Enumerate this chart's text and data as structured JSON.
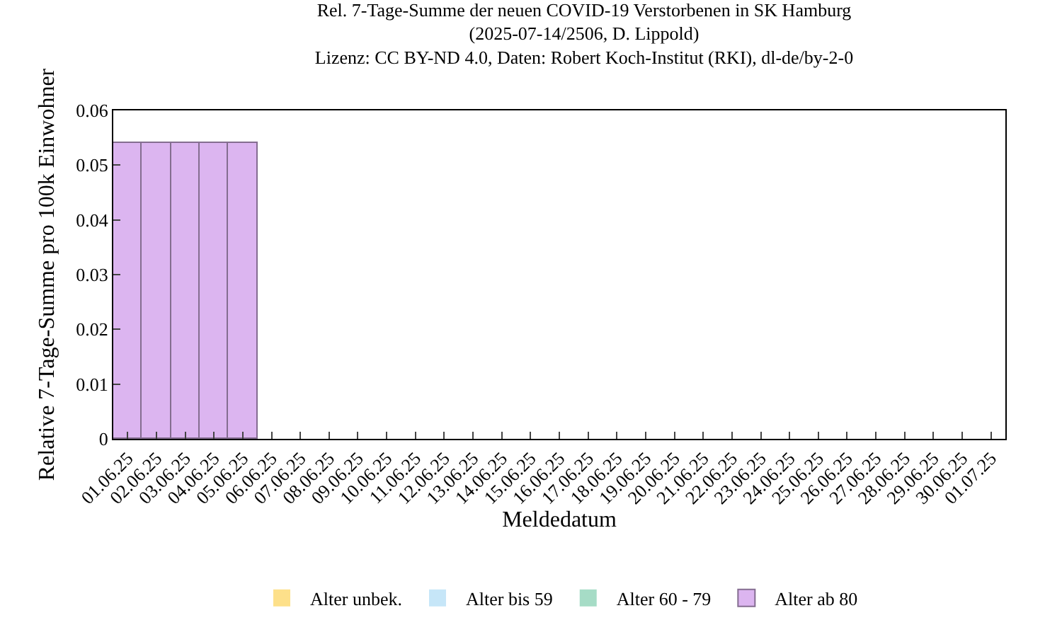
{
  "chart_data": {
    "type": "bar",
    "stacked": true,
    "title": "Rel. 7-Tage-Summe der neuen COVID-19 Verstorbenen in SK Hamburg",
    "subtitle": "(2025-07-14/2506, D. Lippold)\nLizenz: CC BY-ND 4.0, Daten: Robert Koch-Institut (RKI), dl-de/by-2-0",
    "xlabel": "Meldedatum",
    "ylabel": "Relative 7-Tage-Summe pro 100k Einwohner",
    "categories": [
      "01.06.25",
      "02.06.25",
      "03.06.25",
      "04.06.25",
      "05.06.25",
      "06.06.25",
      "07.06.25",
      "08.06.25",
      "09.06.25",
      "10.06.25",
      "11.06.25",
      "12.06.25",
      "13.06.25",
      "14.06.25",
      "15.06.25",
      "16.06.25",
      "17.06.25",
      "18.06.25",
      "19.06.25",
      "20.06.25",
      "21.06.25",
      "22.06.25",
      "23.06.25",
      "24.06.25",
      "25.06.25",
      "26.06.25",
      "27.06.25",
      "28.06.25",
      "29.06.25",
      "30.06.25",
      "01.07.25"
    ],
    "series": [
      {
        "name": "Alter unbek.",
        "color": "#fde08a",
        "values": [
          0,
          0,
          0,
          0,
          0,
          0,
          0,
          0,
          0,
          0,
          0,
          0,
          0,
          0,
          0,
          0,
          0,
          0,
          0,
          0,
          0,
          0,
          0,
          0,
          0,
          0,
          0,
          0,
          0,
          0,
          0
        ]
      },
      {
        "name": "Alter bis 59",
        "color": "#c6e6f8",
        "values": [
          0,
          0,
          0,
          0,
          0,
          0,
          0,
          0,
          0,
          0,
          0,
          0,
          0,
          0,
          0,
          0,
          0,
          0,
          0,
          0,
          0,
          0,
          0,
          0,
          0,
          0,
          0,
          0,
          0,
          0,
          0
        ]
      },
      {
        "name": "Alter 60 - 79",
        "color": "#a6dcc6",
        "values": [
          0,
          0,
          0,
          0,
          0,
          0,
          0,
          0,
          0,
          0,
          0,
          0,
          0,
          0,
          0,
          0,
          0,
          0,
          0,
          0,
          0,
          0,
          0,
          0,
          0,
          0,
          0,
          0,
          0,
          0,
          0
        ]
      },
      {
        "name": "Alter ab 80",
        "color": "#dcb5f0",
        "values": [
          0.054,
          0.054,
          0.054,
          0.054,
          0.054,
          0,
          0,
          0,
          0,
          0,
          0,
          0,
          0,
          0,
          0,
          0,
          0,
          0,
          0,
          0,
          0,
          0,
          0,
          0,
          0,
          0,
          0,
          0,
          0,
          0,
          0
        ]
      }
    ],
    "ylim": [
      0,
      0.06
    ],
    "yticks": [
      0,
      0.01,
      0.02,
      0.03,
      0.04,
      0.05,
      0.06
    ],
    "legend": "bottom",
    "grid": false
  }
}
